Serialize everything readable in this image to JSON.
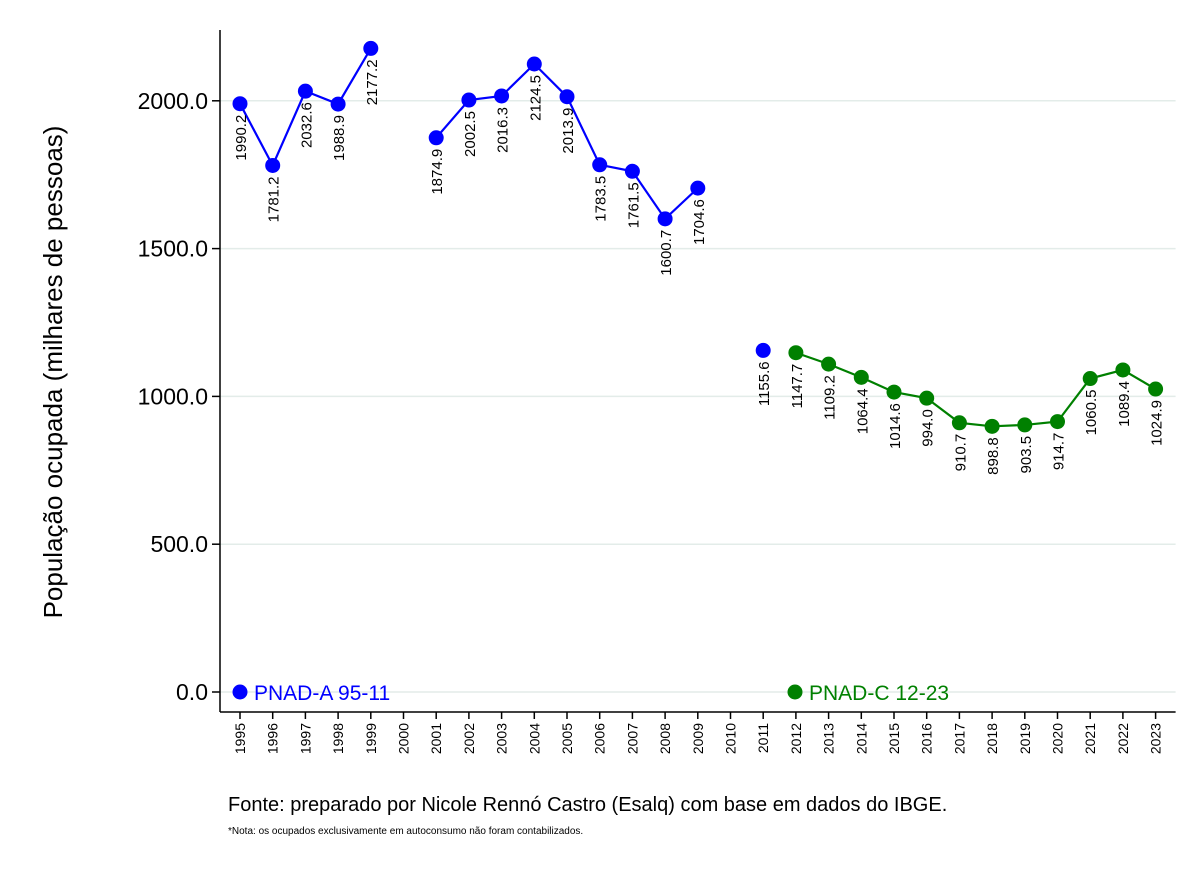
{
  "chart_data": {
    "type": "line",
    "ylabel": "População ocupada (milhares de pessoas)",
    "xlabel": "",
    "ylim": [
      0,
      2250
    ],
    "yticks": [
      0,
      500,
      1000,
      1500,
      2000
    ],
    "ytick_labels": [
      "0.0",
      "500.0",
      "1000.0",
      "1500.0",
      "2000.0"
    ],
    "x_categories": [
      "1995",
      "1996",
      "1997",
      "1998",
      "1999",
      "2000",
      "2001",
      "2002",
      "2003",
      "2004",
      "2005",
      "2006",
      "2007",
      "2008",
      "2009",
      "2010",
      "2011",
      "2012",
      "2013",
      "2014",
      "2015",
      "2016",
      "2017",
      "2018",
      "2019",
      "2020",
      "2021",
      "2022",
      "2023"
    ],
    "grid": true,
    "series": [
      {
        "name": "PNAD-A 95-11",
        "color": "#0000ff",
        "segments": [
          [
            {
              "x": "1995",
              "y": 1990.2,
              "label": "1990.2"
            },
            {
              "x": "1996",
              "y": 1781.2,
              "label": "1781.2"
            },
            {
              "x": "1997",
              "y": 2032.6,
              "label": "2032.6"
            },
            {
              "x": "1998",
              "y": 1988.9,
              "label": "1988.9"
            },
            {
              "x": "1999",
              "y": 2177.2,
              "label": "2177.2"
            }
          ],
          [
            {
              "x": "2001",
              "y": 1874.9,
              "label": "1874.9"
            },
            {
              "x": "2002",
              "y": 2002.5,
              "label": "2002.5"
            },
            {
              "x": "2003",
              "y": 2016.3,
              "label": "2016.3"
            },
            {
              "x": "2004",
              "y": 2124.5,
              "label": "2124.5"
            },
            {
              "x": "2005",
              "y": 2013.9,
              "label": "2013.9"
            },
            {
              "x": "2006",
              "y": 1783.5,
              "label": "1783.5"
            },
            {
              "x": "2007",
              "y": 1761.5,
              "label": "1761.5"
            },
            {
              "x": "2008",
              "y": 1600.7,
              "label": "1600.7"
            },
            {
              "x": "2009",
              "y": 1704.6,
              "label": "1704.6"
            }
          ],
          [
            {
              "x": "2011",
              "y": 1155.6,
              "label": "1155.6"
            }
          ]
        ]
      },
      {
        "name": "PNAD-C 12-23",
        "color": "#008000",
        "segments": [
          [
            {
              "x": "2012",
              "y": 1147.7,
              "label": "1147.7"
            },
            {
              "x": "2013",
              "y": 1109.2,
              "label": "1109.2"
            },
            {
              "x": "2014",
              "y": 1064.4,
              "label": "1064.4"
            },
            {
              "x": "2015",
              "y": 1014.6,
              "label": "1014.6"
            },
            {
              "x": "2016",
              "y": 994.0,
              "label": "994.0"
            },
            {
              "x": "2017",
              "y": 910.7,
              "label": "910.7"
            },
            {
              "x": "2018",
              "y": 898.8,
              "label": "898.8"
            },
            {
              "x": "2019",
              "y": 903.5,
              "label": "903.5"
            },
            {
              "x": "2020",
              "y": 914.7,
              "label": "914.7"
            },
            {
              "x": "2021",
              "y": 1060.5,
              "label": "1060.5"
            },
            {
              "x": "2022",
              "y": 1089.4,
              "label": "1089.4"
            },
            {
              "x": "2023",
              "y": 1024.9,
              "label": "1024.9"
            }
          ]
        ]
      }
    ],
    "legend_placement": "inside-bottom"
  },
  "footer": {
    "source": "Fonte: preparado por Nicole Rennó Castro (Esalq) com base em dados do IBGE.",
    "note": "*Nota: os ocupados exclusivamente em autoconsumo não foram contabilizados."
  }
}
